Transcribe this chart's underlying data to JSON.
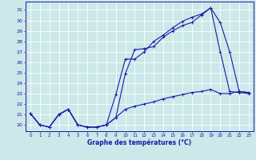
{
  "title": "Graphe des températures (°C)",
  "bg_color": "#cce8e8",
  "grid_color": "#ffffff",
  "line_color": "#1a1aaa",
  "x_ticks": [
    0,
    1,
    2,
    3,
    4,
    5,
    6,
    7,
    8,
    9,
    10,
    11,
    12,
    13,
    14,
    15,
    16,
    17,
    18,
    19,
    20,
    21,
    22,
    23
  ],
  "y_ticks": [
    20,
    21,
    22,
    23,
    24,
    25,
    26,
    27,
    28,
    29,
    30,
    31
  ],
  "ylim": [
    19.4,
    31.8
  ],
  "xlim": [
    -0.5,
    23.5
  ],
  "line1_x": [
    0,
    1,
    2,
    3,
    4,
    5,
    6,
    7,
    8,
    9,
    10,
    11,
    12,
    13,
    14,
    15,
    16,
    17,
    18,
    19,
    20,
    21,
    22,
    23
  ],
  "line1_y": [
    21.1,
    20.0,
    19.8,
    21.0,
    21.5,
    20.0,
    19.8,
    19.8,
    20.0,
    20.7,
    24.9,
    27.2,
    27.3,
    27.5,
    28.4,
    29.0,
    29.5,
    29.8,
    30.5,
    31.2,
    29.8,
    27.0,
    23.2,
    23.1
  ],
  "line2_x": [
    0,
    1,
    2,
    3,
    4,
    5,
    6,
    7,
    8,
    9,
    10,
    11,
    12,
    13,
    14,
    15,
    16,
    17,
    18,
    19,
    20,
    21,
    22,
    23
  ],
  "line2_y": [
    21.1,
    20.0,
    19.8,
    21.0,
    21.5,
    20.0,
    19.8,
    19.8,
    20.0,
    22.9,
    26.3,
    26.3,
    27.0,
    28.0,
    28.6,
    29.3,
    29.9,
    30.3,
    30.6,
    31.2,
    27.0,
    23.2,
    23.1,
    23.0
  ],
  "line3_x": [
    0,
    1,
    2,
    3,
    4,
    5,
    6,
    7,
    8,
    9,
    10,
    11,
    12,
    13,
    14,
    15,
    16,
    17,
    18,
    19,
    20,
    21,
    22,
    23
  ],
  "line3_y": [
    21.1,
    20.0,
    19.8,
    21.0,
    21.5,
    20.0,
    19.8,
    19.8,
    20.0,
    20.7,
    21.5,
    21.8,
    22.0,
    22.2,
    22.5,
    22.7,
    22.9,
    23.1,
    23.2,
    23.4,
    23.0,
    23.0,
    23.2,
    23.1
  ]
}
